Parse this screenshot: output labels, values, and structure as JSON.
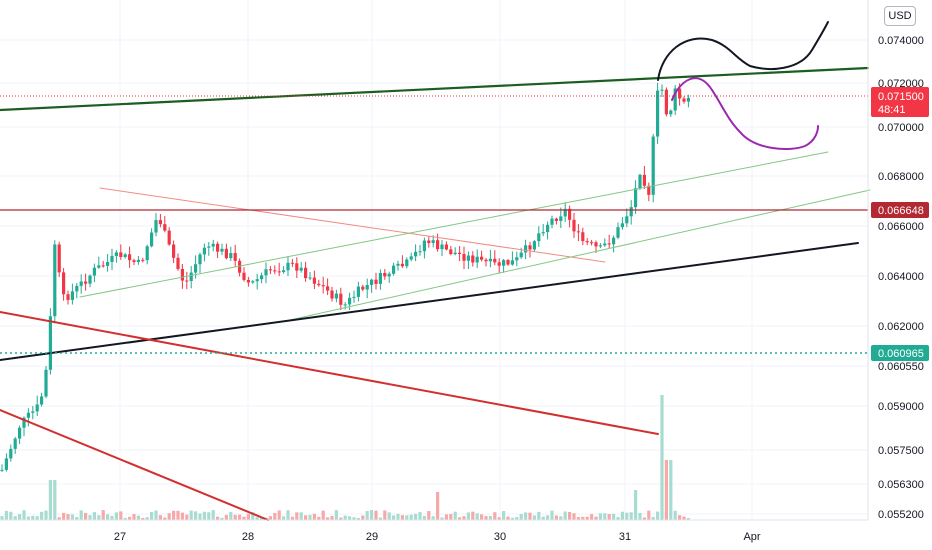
{
  "chart_data": {
    "type": "candlestick",
    "currency": "USD",
    "y_ticks": [
      "0.074000",
      "0.072000",
      "0.070000",
      "0.068000",
      "0.066000",
      "0.064000",
      "0.062000",
      "0.060550",
      "0.059000",
      "0.057500",
      "0.056300",
      "0.055200"
    ],
    "x_ticks": [
      "27",
      "28",
      "29",
      "30",
      "31",
      "Apr"
    ],
    "last_price": {
      "label": "0.071500",
      "countdown": "48:41",
      "color": "#f23645"
    },
    "price_lines": [
      {
        "label": "0.066648",
        "color": "#b22833"
      },
      {
        "label": "0.060965",
        "color": "#22ab94"
      }
    ],
    "colors": {
      "up": "#22ab94",
      "down": "#f23645",
      "volume_up": "#a8dcd1",
      "volume_down": "#f7a8a8"
    }
  }
}
